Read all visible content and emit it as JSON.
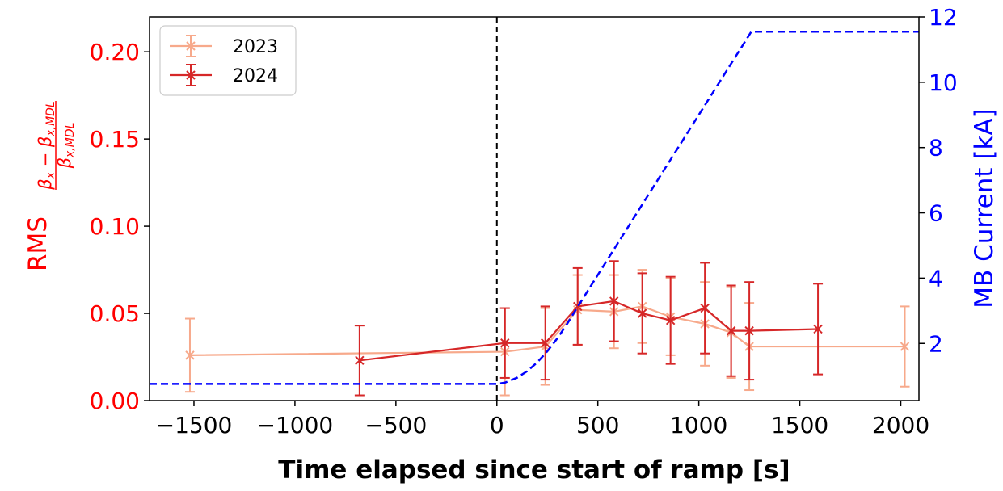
{
  "chart_data": {
    "type": "line",
    "xlabel": "Time elapsed since start of ramp [s]",
    "ylabel_left": {
      "prefix": "RMS",
      "numerator_main": "β",
      "numerator_sub1": "x",
      "numerator_minus": " − β",
      "numerator_sub2": "x,MDL",
      "denominator_main": "β",
      "denominator_sub": "x,MDL"
    },
    "ylabel_right": "MB Current [kA]",
    "xlim": [
      -1720,
      2090
    ],
    "ylim_left": [
      0.0,
      0.22
    ],
    "ylim_right": [
      0.25,
      12.0
    ],
    "x_ticks": [
      -1500,
      -1000,
      -500,
      0,
      500,
      1000,
      1500,
      2000
    ],
    "x_tick_labels": [
      "−1500",
      "−1000",
      "−500",
      "0",
      "500",
      "1000",
      "1500",
      "2000"
    ],
    "y_left_ticks": [
      0.0,
      0.05,
      0.1,
      0.15,
      0.2
    ],
    "y_left_tick_labels": [
      "0.00",
      "0.05",
      "0.10",
      "0.15",
      "0.20"
    ],
    "y_right_ticks": [
      2,
      4,
      6,
      8,
      10,
      12
    ],
    "y_right_tick_labels": [
      "2",
      "4",
      "6",
      "8",
      "10",
      "12"
    ],
    "legend_position": "top-left",
    "ramp_start_line_x": 0,
    "series": [
      {
        "name": "2023",
        "color": "#f7a98b",
        "marker": "x",
        "x": [
          -1520,
          40,
          240,
          400,
          580,
          720,
          860,
          1030,
          1160,
          1250,
          2020
        ],
        "y": [
          0.026,
          0.028,
          0.031,
          0.052,
          0.051,
          0.054,
          0.048,
          0.044,
          0.039,
          0.031,
          0.031
        ],
        "err": [
          0.021,
          0.025,
          0.022,
          0.02,
          0.021,
          0.021,
          0.022,
          0.024,
          0.026,
          0.025,
          0.023
        ]
      },
      {
        "name": "2024",
        "color": "#d62728",
        "marker": "x",
        "x": [
          -680,
          40,
          240,
          400,
          580,
          720,
          860,
          1030,
          1160,
          1250,
          1590
        ],
        "y": [
          0.023,
          0.033,
          0.033,
          0.054,
          0.057,
          0.05,
          0.046,
          0.053,
          0.04,
          0.04,
          0.041
        ],
        "err": [
          0.02,
          0.02,
          0.021,
          0.022,
          0.023,
          0.023,
          0.025,
          0.026,
          0.026,
          0.028,
          0.026
        ]
      },
      {
        "name": "MB Current",
        "color": "#0000ff",
        "axis": "right",
        "style": "dashed",
        "x": [
          -1720,
          0,
          40,
          100,
          150,
          200,
          250,
          300,
          350,
          400,
          1260,
          2090
        ],
        "y": [
          0.76,
          0.76,
          0.8,
          0.95,
          1.15,
          1.42,
          1.76,
          2.16,
          2.62,
          3.12,
          11.55,
          11.55
        ]
      }
    ]
  }
}
